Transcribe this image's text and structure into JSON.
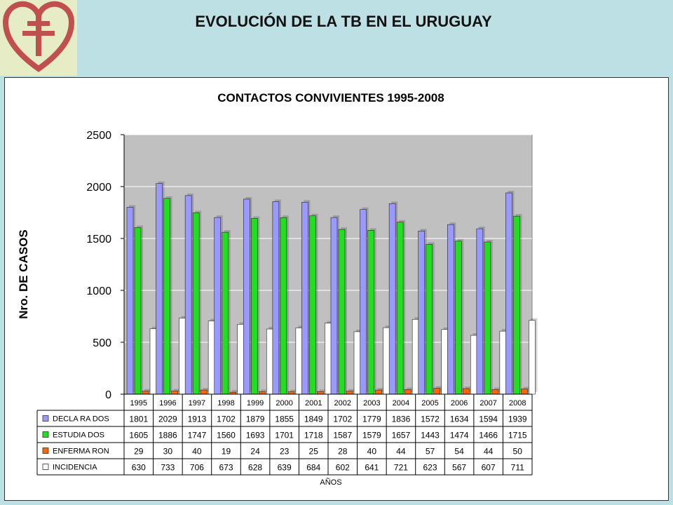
{
  "header": {
    "title": "EVOLUCIÓN DE LA TB EN EL URUGUAY",
    "logo_icon": "heart-lorraine-cross-icon"
  },
  "colors": {
    "page_bg": "#bde0e4",
    "logo_bg": "#e6ecc6",
    "logo_red": "#c0504d",
    "plot_bg": "#c0c0c0"
  },
  "chart_data": {
    "type": "bar",
    "title": "CONTACTOS CONVIVIENTES 1995-2008",
    "xlabel": "AÑOS",
    "ylabel": "Nro. DE CASOS",
    "ylim": [
      0,
      2500
    ],
    "yticks": [
      0,
      500,
      1000,
      1500,
      2000,
      2500
    ],
    "grid": true,
    "legend": "table-left",
    "categories": [
      "1995",
      "1996",
      "1997",
      "1998",
      "1999",
      "2000",
      "2001",
      "2002",
      "2003",
      "2004",
      "2005",
      "2006",
      "2007",
      "2008"
    ],
    "series": [
      {
        "name": "DECLA RA DOS",
        "color": "#9999ff",
        "values": [
          1801,
          2029,
          1913,
          1702,
          1879,
          1855,
          1849,
          1702,
          1779,
          1836,
          1572,
          1634,
          1594,
          1939
        ]
      },
      {
        "name": "ESTUDIA DOS",
        "color": "#22dd22",
        "values": [
          1605,
          1886,
          1747,
          1560,
          1693,
          1701,
          1718,
          1587,
          1579,
          1657,
          1443,
          1474,
          1466,
          1715
        ]
      },
      {
        "name": "ENFERMA RON",
        "color": "#ff6600",
        "values": [
          29,
          30,
          40,
          19,
          24,
          23,
          25,
          28,
          40,
          44,
          57,
          54,
          44,
          50
        ]
      },
      {
        "name": "INCIDENCIA",
        "color": "#ffffff",
        "values": [
          630,
          733,
          706,
          673,
          628,
          639,
          684,
          602,
          641,
          721,
          623,
          567,
          607,
          711
        ]
      }
    ]
  }
}
